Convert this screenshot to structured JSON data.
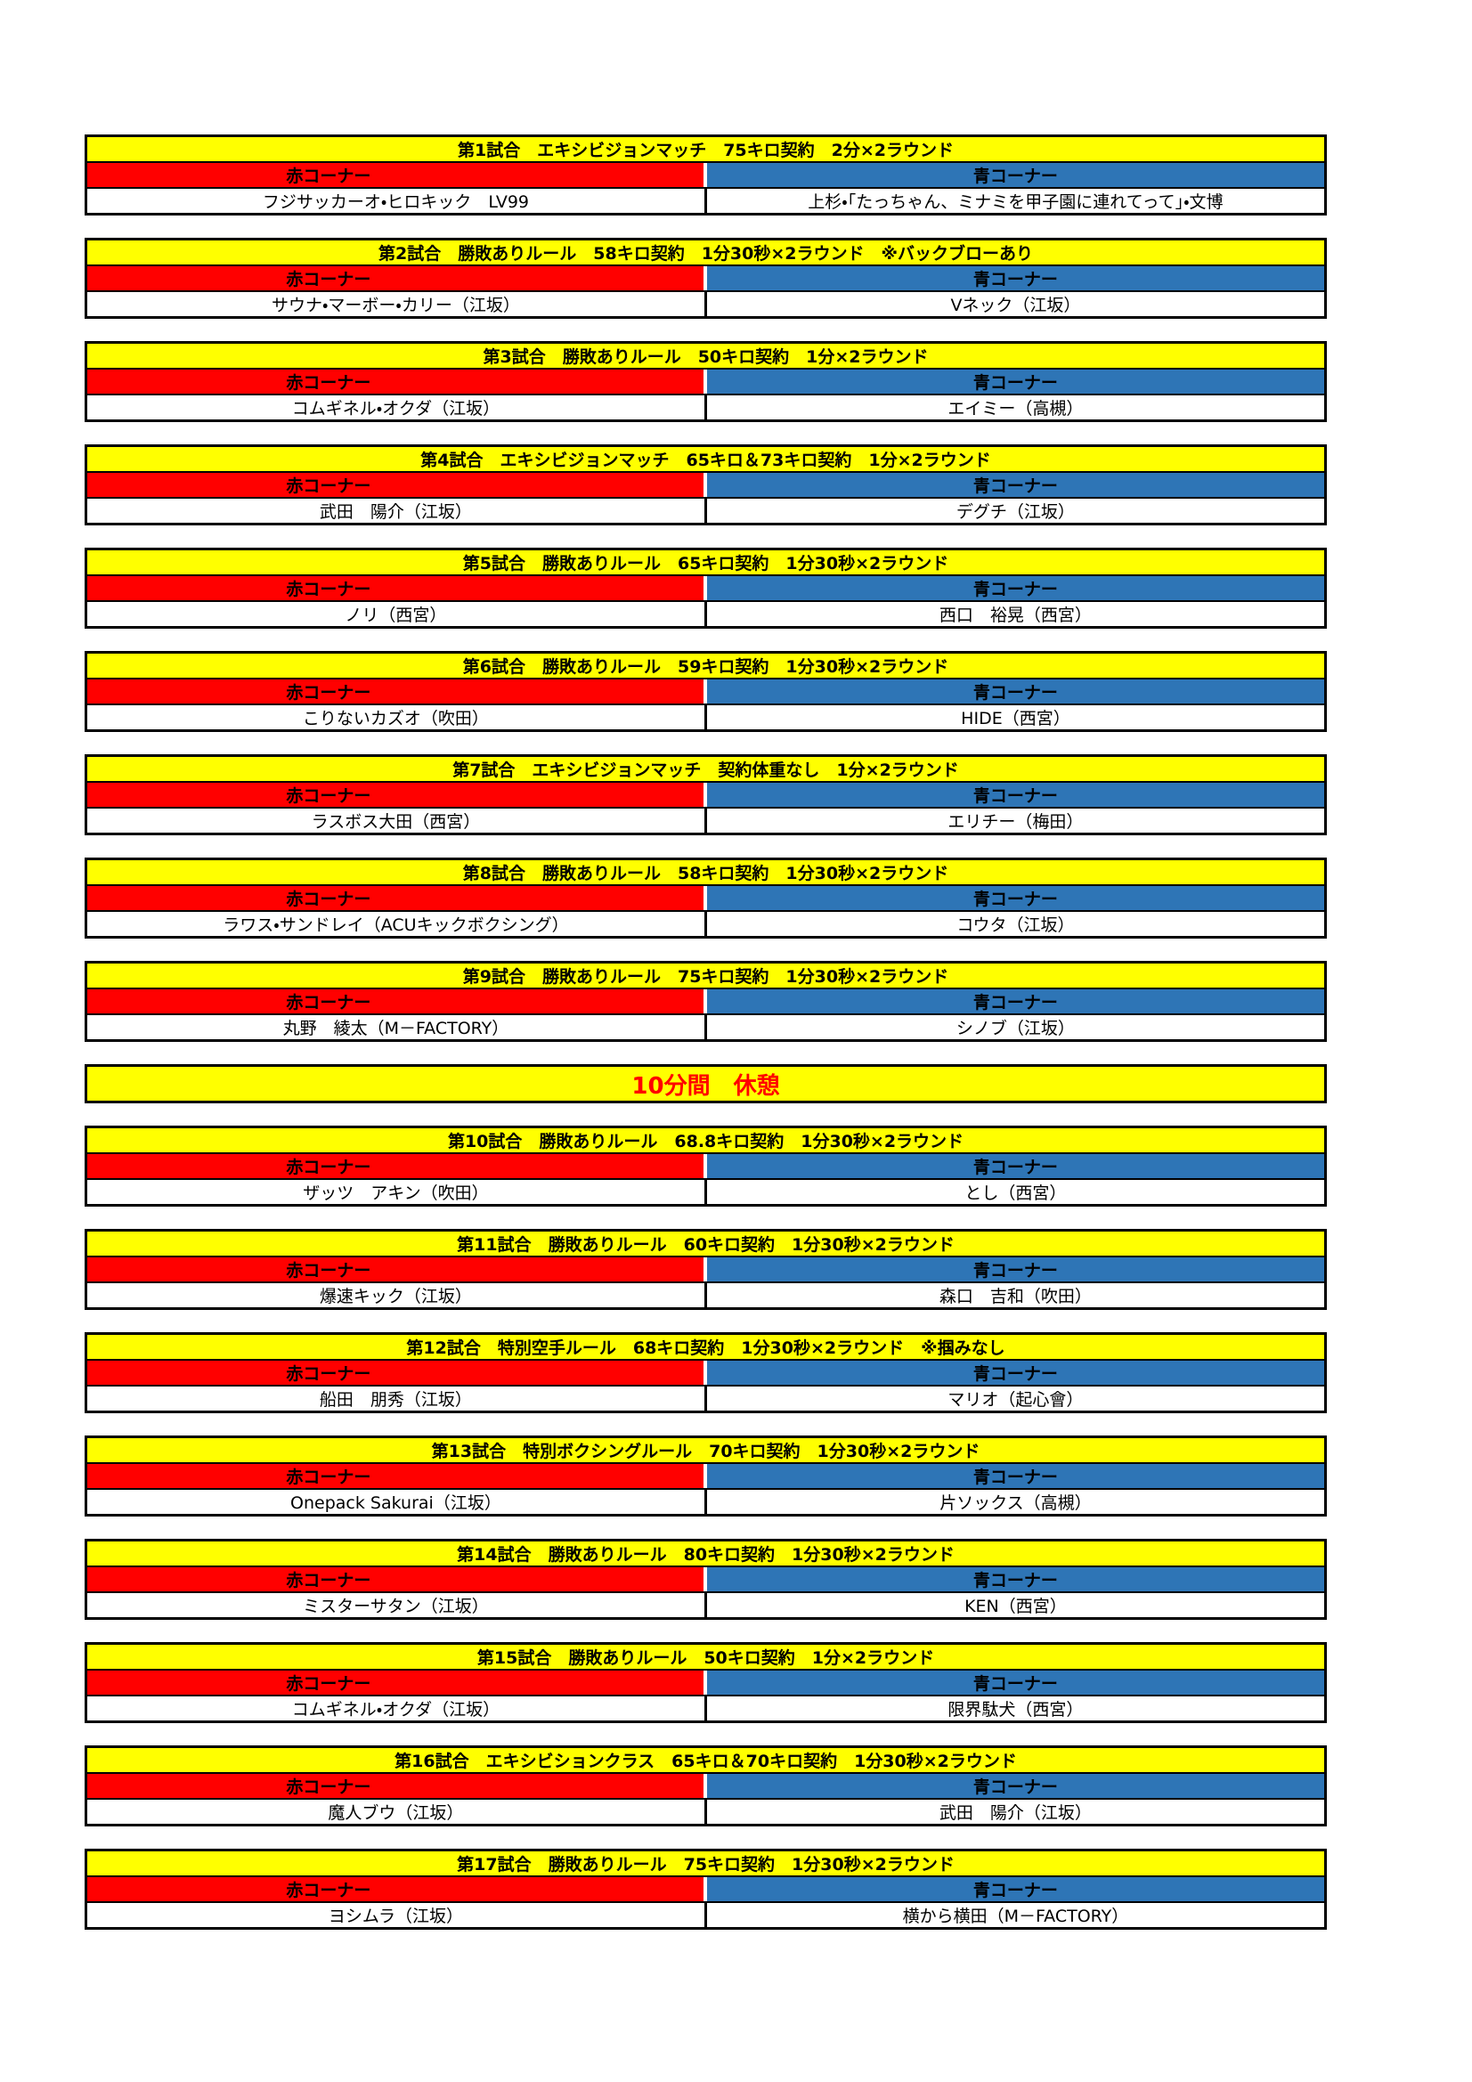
{
  "labels": {
    "red_corner": "赤コーナー",
    "blue_corner": "青コーナー"
  },
  "colors": {
    "title_bar_bg": "#FFFF00",
    "red_corner_bg": "#FF0000",
    "blue_corner_bg": "#2E75B6",
    "break_text": "#FF0000",
    "border": "#000000",
    "text": "#000000"
  },
  "sections": [
    {
      "kind": "match",
      "title": "第1試合　エキシビジョンマッチ　75キロ契約　2分×2ラウンド",
      "red": "フジサッカーオ・ヒロキック　LV99",
      "blue": "上杉・「たっちゃん、ミナミを甲子園に連れてって」・文博"
    },
    {
      "kind": "match",
      "title": "第2試合　勝敗ありルール　58キロ契約　1分30秒×2ラウンド　※バックブローあり",
      "red": "サウナ・マーボー・カリー（江坂）",
      "blue": "Vネック（江坂）"
    },
    {
      "kind": "match",
      "title": "第3試合　勝敗ありルール　50キロ契約　1分×2ラウンド",
      "red": "コムギネル・オクダ（江坂）",
      "blue": "エイミー（高槻）"
    },
    {
      "kind": "match",
      "title": "第4試合　エキシビジョンマッチ　65キロ＆73キロ契約　1分×2ラウンド",
      "red": "武田　陽介（江坂）",
      "blue": "デグチ（江坂）"
    },
    {
      "kind": "match",
      "title": "第5試合　勝敗ありルール　65キロ契約　1分30秒×2ラウンド",
      "red": "ノリ（西宮）",
      "blue": "西口　裕晃（西宮）"
    },
    {
      "kind": "match",
      "title": "第6試合　勝敗ありルール　59キロ契約　1分30秒×2ラウンド",
      "red": "こりないカズオ（吹田）",
      "blue": "HIDE（西宮）"
    },
    {
      "kind": "match",
      "title": "第7試合　エキシビジョンマッチ　契約体重なし　1分×2ラウンド",
      "red": "ラスボス大田（西宮）",
      "blue": "エリチー（梅田）"
    },
    {
      "kind": "match",
      "title": "第8試合　勝敗ありルール　58キロ契約　1分30秒×2ラウンド",
      "red": "ラワス・サンドレイ（ACUキックボクシング）",
      "blue": "コウタ（江坂）"
    },
    {
      "kind": "match",
      "title": "第9試合　勝敗ありルール　75キロ契約　1分30秒×2ラウンド",
      "red": "丸野　綾太（M－FACTORY）",
      "blue": "シノブ（江坂）"
    },
    {
      "kind": "break",
      "label": "10分間　休憩"
    },
    {
      "kind": "match",
      "title": "第10試合　勝敗ありルール　68.8キロ契約　1分30秒×2ラウンド",
      "red": "ザッツ　アキン（吹田）",
      "blue": "とし（西宮）"
    },
    {
      "kind": "match",
      "title": "第11試合　勝敗ありルール　60キロ契約　1分30秒×2ラウンド",
      "red": "爆速キック（江坂）",
      "blue": "森口　吉和（吹田）"
    },
    {
      "kind": "match",
      "title": "第12試合　特別空手ルール　68キロ契約　1分30秒×2ラウンド　※掴みなし",
      "red": "船田　朋秀（江坂）",
      "blue": "マリオ（起心會）"
    },
    {
      "kind": "match",
      "title": "第13試合　特別ボクシングルール　70キロ契約　1分30秒×2ラウンド",
      "red": "Onepack Sakurai（江坂）",
      "blue": "片ソックス（高槻）"
    },
    {
      "kind": "match",
      "title": "第14試合　勝敗ありルール　80キロ契約　1分30秒×2ラウンド",
      "red": "ミスターサタン（江坂）",
      "blue": "KEN（西宮）"
    },
    {
      "kind": "match",
      "title": "第15試合　勝敗ありルール　50キロ契約　1分×2ラウンド",
      "red": "コムギネル・オクダ（江坂）",
      "blue": "限界駄犬（西宮）"
    },
    {
      "kind": "match",
      "title": "第16試合　エキシビションクラス　65キロ＆70キロ契約　1分30秒×2ラウンド",
      "red": "魔人ブウ（江坂）",
      "blue": "武田　陽介（江坂）"
    },
    {
      "kind": "match",
      "title": "第17試合　勝敗ありルール　75キロ契約　1分30秒×2ラウンド",
      "red": "ヨシムラ（江坂）",
      "blue": "横から横田（M－FACTORY）"
    }
  ]
}
